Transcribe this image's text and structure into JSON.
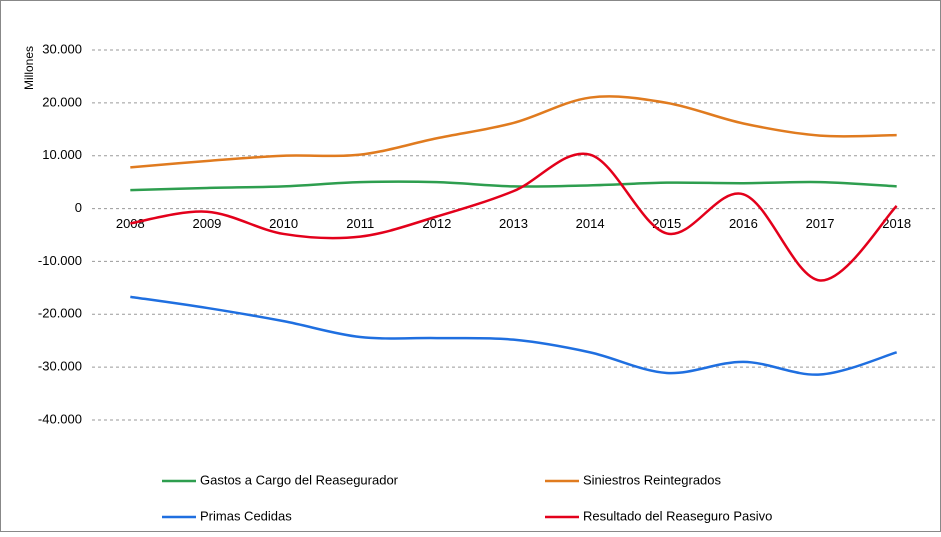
{
  "chart_data": {
    "type": "line",
    "y_label": "Millones",
    "categories": [
      "2008",
      "2009",
      "2010",
      "2011",
      "2012",
      "2013",
      "2014",
      "2015",
      "2016",
      "2017",
      "2018"
    ],
    "series": [
      {
        "name": "Gastos a Cargo del Reasegurador",
        "color": "#2e9e4f",
        "values": [
          3500,
          3900,
          4200,
          5000,
          5000,
          4200,
          4400,
          4900,
          4800,
          5000,
          4200
        ]
      },
      {
        "name": "Siniestros Reintegrados",
        "color": "#e07b1f",
        "values": [
          7800,
          9000,
          10000,
          10200,
          13300,
          16200,
          21000,
          20000,
          16100,
          13800,
          13900
        ]
      },
      {
        "name": "Primas Cedidas",
        "color": "#1f6fe0",
        "values": [
          -16700,
          -18800,
          -21300,
          -24300,
          -24500,
          -24800,
          -27200,
          -31100,
          -29000,
          -31400,
          -27200
        ]
      },
      {
        "name": "Resultado del Reaseguro Pasivo",
        "color": "#e3001b",
        "values": [
          -2800,
          -600,
          -4800,
          -5300,
          -1500,
          3300,
          10200,
          -4700,
          2700,
          -13600,
          500
        ]
      }
    ],
    "ylim": [
      -40000,
      30000
    ],
    "yticks": [
      {
        "value": -40000,
        "label": "-40.000"
      },
      {
        "value": -30000,
        "label": "-30.000"
      },
      {
        "value": -20000,
        "label": "-20.000"
      },
      {
        "value": -10000,
        "label": "-10.000"
      },
      0,
      {
        "value": 10000,
        "label": "10.000"
      },
      {
        "value": 20000,
        "label": "20.000"
      },
      {
        "value": 30000,
        "label": "30.000"
      }
    ],
    "grid": true,
    "legend": "bottom"
  }
}
